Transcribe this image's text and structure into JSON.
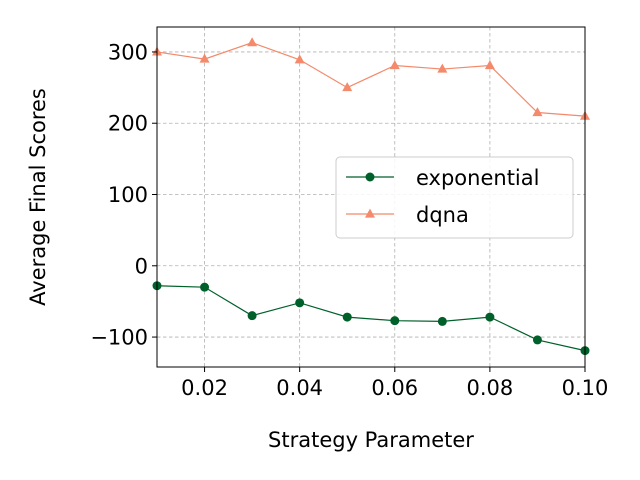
{
  "chart_data": {
    "type": "line",
    "xlabel": "Strategy Parameter",
    "ylabel": "Average Final Scores",
    "xlim": [
      0.01,
      0.1
    ],
    "ylim": [
      -142,
      335
    ],
    "x_ticks": [
      0.02,
      0.04,
      0.06,
      0.08,
      0.1
    ],
    "x_tick_labels": [
      "0.02",
      "0.04",
      "0.06",
      "0.08",
      "0.10"
    ],
    "y_ticks": [
      -100,
      0,
      100,
      200,
      300
    ],
    "y_tick_labels": [
      "−100",
      "0",
      "100",
      "200",
      "300"
    ],
    "grid": true,
    "legend_position": "center-right",
    "x": [
      0.01,
      0.02,
      0.03,
      0.04,
      0.05,
      0.06,
      0.07,
      0.08,
      0.09,
      0.1
    ],
    "series": [
      {
        "name": "exponential",
        "color": "#00602a",
        "marker": "circle",
        "values": [
          -28,
          -30,
          -70,
          -52,
          -72,
          -77,
          -78,
          -72,
          -104,
          -119
        ]
      },
      {
        "name": "dqna",
        "color": "#f4896b",
        "marker": "triangle",
        "values": [
          300,
          290,
          313,
          289,
          250,
          281,
          276,
          281,
          215,
          210
        ]
      }
    ]
  }
}
